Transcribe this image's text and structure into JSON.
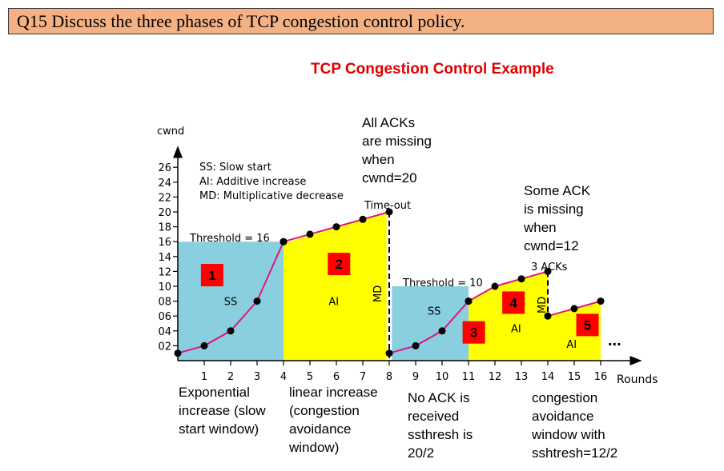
{
  "question": "Q15 Discuss the three phases of TCP congestion control policy.",
  "chart_title": "TCP Congestion Control Example",
  "chart_data": {
    "type": "line",
    "xlabel": "Rounds",
    "ylabel": "cwnd",
    "x_ticks": [
      "1",
      "2",
      "3",
      "4",
      "5",
      "6",
      "7",
      "8",
      "9",
      "10",
      "11",
      "12",
      "13",
      "14",
      "15",
      "16"
    ],
    "y_ticks": [
      "02",
      "04",
      "06",
      "08",
      "10",
      "12",
      "14",
      "16",
      "18",
      "20",
      "22",
      "24",
      "26"
    ],
    "xlim": [
      0,
      16
    ],
    "ylim": [
      0,
      26
    ],
    "series": [
      {
        "x": [
          0,
          1,
          2,
          3,
          4
        ],
        "y": [
          1,
          2,
          4,
          8,
          16
        ]
      },
      {
        "x": [
          4,
          5,
          6,
          7,
          8
        ],
        "y": [
          16,
          17,
          18,
          19,
          20
        ]
      },
      {
        "x": [
          8,
          9,
          10,
          11
        ],
        "y": [
          1,
          2,
          4,
          8
        ]
      },
      {
        "x": [
          11,
          12,
          13,
          14
        ],
        "y": [
          8,
          10,
          11,
          12
        ]
      },
      {
        "x": [
          14,
          15,
          16
        ],
        "y": [
          6,
          7,
          8
        ]
      }
    ],
    "regions": [
      {
        "x0": 0,
        "x1": 4,
        "top": 16,
        "color": "#89cfe0",
        "label": "SS",
        "number": "1"
      },
      {
        "x0": 4,
        "x1": 7.9,
        "top": 20,
        "color": "#ffff00",
        "label": "AI",
        "number": "2"
      },
      {
        "x0": 8.1,
        "x1": 11,
        "top": 10,
        "color": "#89cfe0",
        "label": "SS",
        "number": "3"
      },
      {
        "x0": 11,
        "x1": 14,
        "top": 12,
        "color": "#ffff00",
        "label": "AI",
        "number": "4"
      },
      {
        "x0": 14,
        "x1": 16,
        "top": 8,
        "color": "#ffff00",
        "label": "AI",
        "number": "5"
      }
    ],
    "thresholds": [
      {
        "label": "Threshold = 16"
      },
      {
        "label": "Threshold = 10"
      }
    ],
    "md_label": "MD",
    "legend": [
      "SS: Slow start",
      "AI: Additive increase",
      "MD: Multiplicative decrease"
    ],
    "timeout_label": "Time-out",
    "acks_label": "3 ACKs",
    "ellipsis": "...",
    "line_color": "#e0157f",
    "marker_color": "#000000",
    "box_color": "#ff0000"
  },
  "annotations": {
    "all_acks": [
      "All ACKs",
      "are missing",
      "when",
      "cwnd=20"
    ],
    "some_ack": [
      "Some ACK",
      "is missing",
      "when",
      "cwnd=12"
    ],
    "exponential": [
      "Exponential",
      "increase (slow",
      "start window)"
    ],
    "linear": [
      "linear increase",
      "(congestion",
      "avoidance",
      "window)"
    ],
    "no_ack": [
      "No ACK is",
      "received",
      "ssthresh is",
      "20/2"
    ],
    "congestion": [
      "congestion",
      "avoidance",
      "window with",
      "sshtresh=12/2"
    ]
  }
}
